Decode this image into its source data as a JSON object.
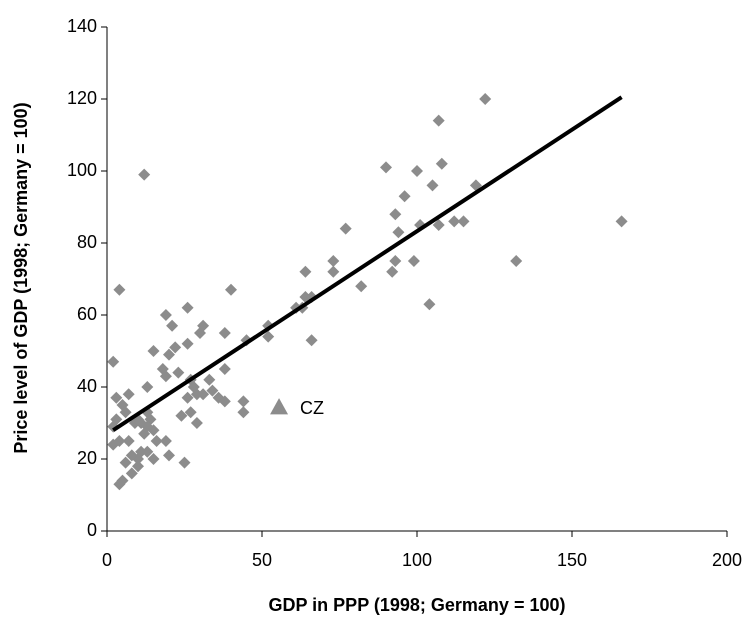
{
  "chart_data": {
    "type": "scatter",
    "xlabel": "GDP in PPP (1998; Germany = 100)",
    "ylabel": "Price level of GDP (1998; Germany = 100)",
    "color": "#8c8c8c",
    "x": [
      122,
      107,
      90,
      100,
      108,
      105,
      119,
      96,
      93,
      94,
      101,
      107,
      112,
      115,
      166,
      77,
      99,
      93,
      92,
      73,
      73,
      64,
      82,
      132,
      104,
      12,
      64,
      66,
      61,
      63,
      52,
      52,
      66,
      40,
      4,
      26,
      19,
      21,
      31,
      30,
      38,
      45,
      26,
      22,
      15,
      20,
      18,
      19,
      23,
      38,
      33,
      27,
      28,
      34,
      26,
      36,
      38,
      44,
      44,
      29,
      31,
      24,
      27,
      29,
      13,
      7,
      3,
      5,
      2,
      6,
      3,
      2,
      9,
      11,
      14,
      13,
      15,
      12,
      16,
      19,
      13,
      10,
      11,
      15,
      20,
      7,
      4,
      2,
      8,
      6,
      10,
      8,
      5,
      4,
      25,
      10,
      13
    ],
    "values": [
      120,
      114,
      101,
      100,
      102,
      96,
      96,
      93,
      88,
      83,
      85,
      85,
      86,
      86,
      86,
      84,
      75,
      75,
      72,
      75,
      72,
      72,
      68,
      75,
      63,
      99,
      65,
      65,
      62,
      62,
      57,
      54,
      53,
      67,
      67,
      62,
      60,
      57,
      57,
      55,
      55,
      53,
      52,
      51,
      50,
      49,
      45,
      43,
      44,
      45,
      42,
      42,
      40,
      39,
      37,
      37,
      36,
      36,
      33,
      38,
      38,
      32,
      33,
      30,
      40,
      38,
      37,
      35,
      47,
      33,
      31,
      29,
      30,
      30,
      31,
      29,
      28,
      27,
      25,
      25,
      22,
      20,
      22,
      20,
      21,
      25,
      25,
      24,
      21,
      19,
      18,
      16,
      14,
      13,
      19,
      31,
      33
    ],
    "trendline": {
      "x": [
        2,
        166
      ],
      "y": [
        28,
        120.5
      ],
      "color": "#000000"
    },
    "annotations": [
      {
        "text": "CZ",
        "x": 55.5,
        "y": 34.4
      }
    ],
    "xlim": [
      0,
      200
    ],
    "xticks": [
      0,
      50,
      100,
      150,
      200
    ],
    "ylim": [
      0,
      140
    ],
    "yticks": [
      0,
      20,
      40,
      60,
      80,
      100,
      120,
      140
    ],
    "grid": false
  }
}
